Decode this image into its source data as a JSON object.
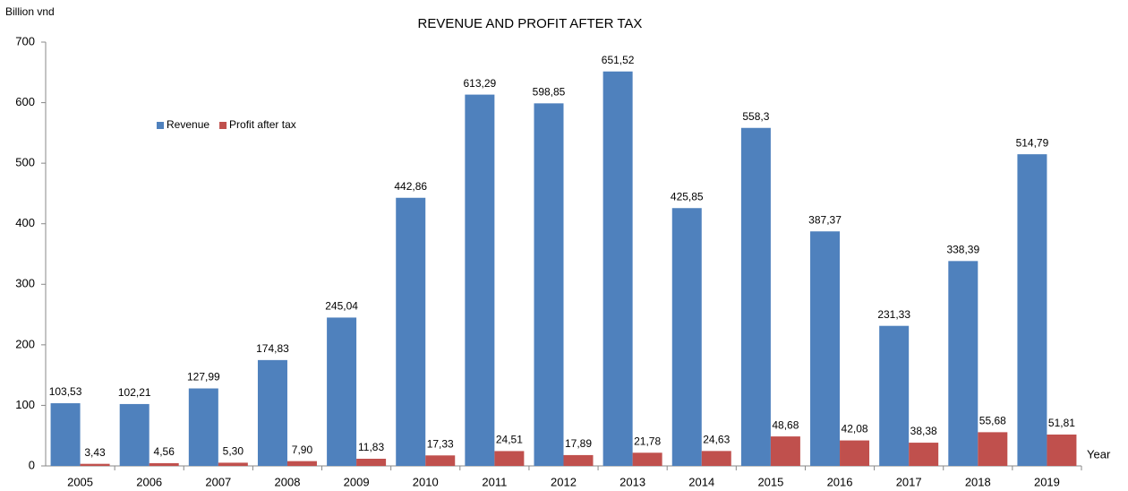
{
  "chart_data": {
    "type": "bar",
    "title": "REVENUE AND PROFIT AFTER TAX",
    "y_label": "Billion vnd",
    "x_label": "Year",
    "categories": [
      "2005",
      "2006",
      "2007",
      "2008",
      "2009",
      "2010",
      "2011",
      "2012",
      "2013",
      "2014",
      "2015",
      "2016",
      "2017",
      "2018",
      "2019"
    ],
    "series": [
      {
        "name": "Revenue",
        "color": "#4f81bd",
        "values": [
          103.53,
          102.21,
          127.99,
          174.83,
          245.04,
          442.86,
          613.29,
          598.85,
          651.52,
          425.85,
          558.3,
          387.37,
          231.33,
          338.39,
          514.79
        ],
        "value_labels": [
          "103,53",
          "102,21",
          "127,99",
          "174,83",
          "245,04",
          "442,86",
          "613,29",
          "598,85",
          "651,52",
          "425,85",
          "558,3",
          "387,37",
          "231,33",
          "338,39",
          "514,79"
        ]
      },
      {
        "name": "Profit after tax",
        "color": "#c0504d",
        "values": [
          3.43,
          4.56,
          5.3,
          7.9,
          11.83,
          17.33,
          24.51,
          17.89,
          21.78,
          24.63,
          48.68,
          42.08,
          38.38,
          55.68,
          51.81
        ],
        "value_labels": [
          "3,43",
          "4,56",
          "5,30",
          "7,90",
          "11,83",
          "17,33",
          "24,51",
          "17,89",
          "21,78",
          "24,63",
          "48,68",
          "42,08",
          "38,38",
          "55,68",
          "51,81"
        ]
      }
    ],
    "ylim": [
      0,
      700
    ],
    "yticks": [
      0,
      100,
      200,
      300,
      400,
      500,
      600,
      700
    ],
    "grid": false,
    "legend": "upper left"
  }
}
